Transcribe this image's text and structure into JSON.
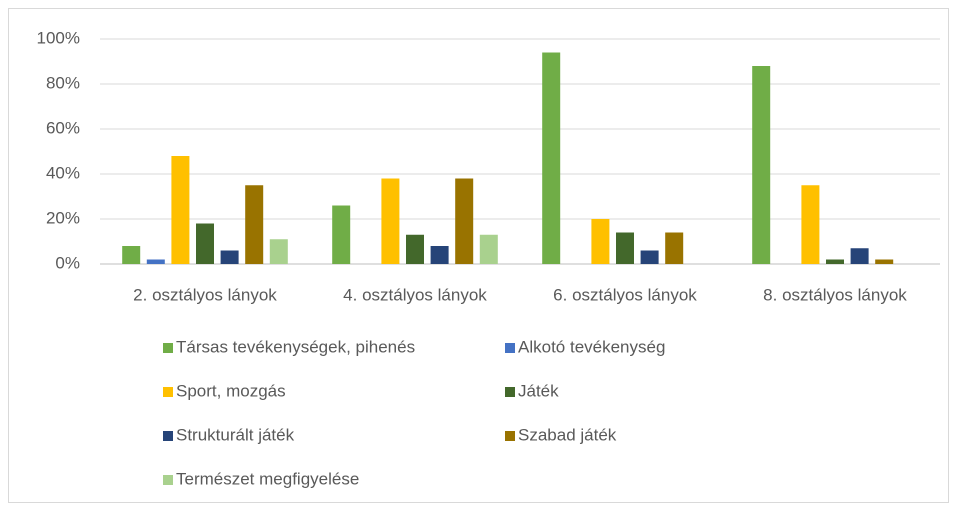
{
  "chart_data": {
    "type": "bar",
    "categories": [
      "2. osztályos lányok",
      "4. osztályos lányok",
      "6. osztályos lányok",
      "8. osztályos lányok"
    ],
    "series": [
      {
        "name": "Társas tevékenységek, pihenés",
        "color": "#70ad47",
        "values": [
          8,
          26,
          94,
          88
        ]
      },
      {
        "name": "Alkotó tevékenység",
        "color": "#4472c4",
        "values": [
          2,
          0,
          0,
          0
        ]
      },
      {
        "name": "Sport, mozgás",
        "color": "#ffc000",
        "values": [
          48,
          38,
          20,
          35
        ]
      },
      {
        "name": "Játék",
        "color": "#43682b",
        "values": [
          18,
          13,
          14,
          2
        ]
      },
      {
        "name": "Strukturált játék",
        "color": "#264478",
        "values": [
          6,
          8,
          6,
          7
        ]
      },
      {
        "name": "Szabad játék",
        "color": "#997300",
        "values": [
          35,
          38,
          14,
          2
        ]
      },
      {
        "name": "Természet megfigyelése",
        "color": "#a9d18e",
        "values": [
          11,
          13,
          0,
          0
        ]
      }
    ],
    "ylim": [
      0,
      100
    ],
    "yticks": [
      {
        "value": 0,
        "label": "0%"
      },
      {
        "value": 20,
        "label": "20%"
      },
      {
        "value": 40,
        "label": "40%"
      },
      {
        "value": 60,
        "label": "60%"
      },
      {
        "value": 80,
        "label": "80%"
      },
      {
        "value": 100,
        "label": "100%"
      }
    ],
    "grid": true,
    "legend": "bottom"
  }
}
